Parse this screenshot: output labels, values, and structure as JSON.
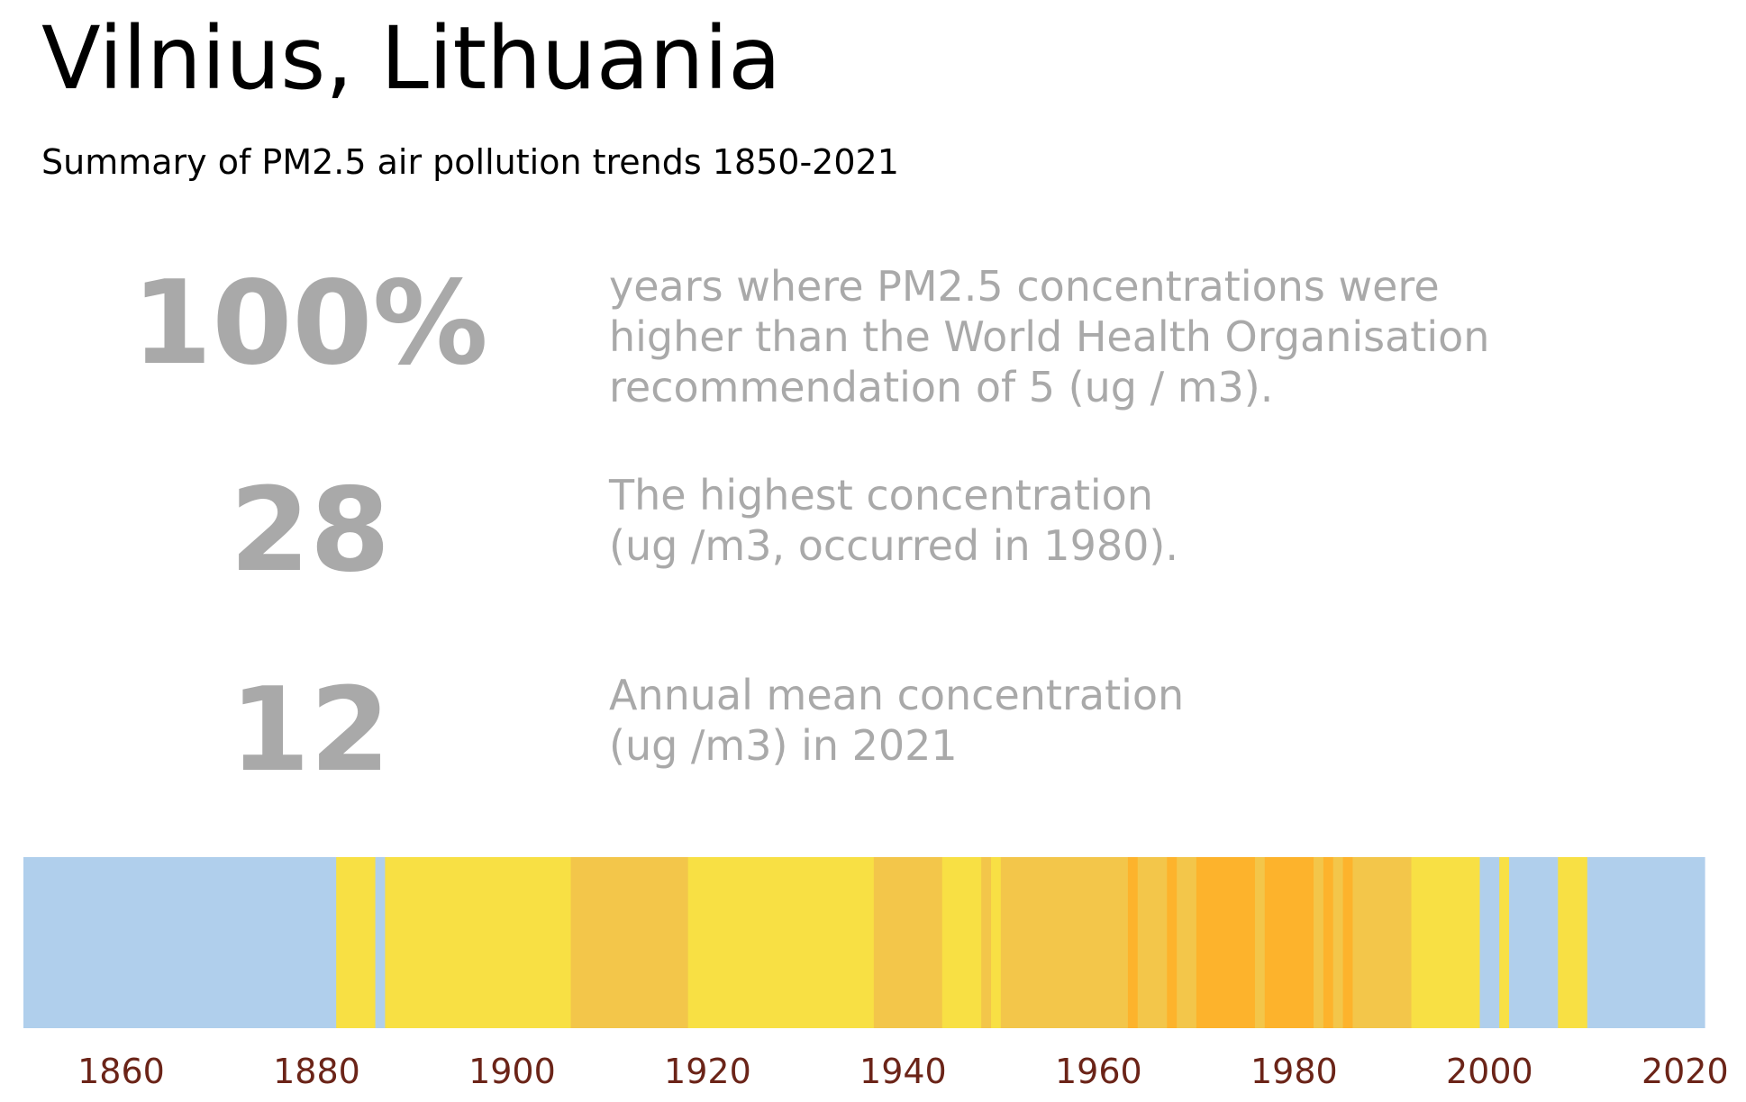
{
  "title": "Vilnius, Lithuania",
  "subtitle": "Summary of PM2.5 air pollution trends 1850-2021",
  "stats": [
    {
      "value": "100%",
      "description": "years where PM2.5 concentrations were\nhigher than the World Health Organisation\nrecommendation of 5 (ug / m3)."
    },
    {
      "value": "28",
      "description": "The highest concentration\n(ug /m3, occurred in 1980)."
    },
    {
      "value": "12",
      "description": "Annual mean concentration\n(ug /m3) in 2021"
    }
  ],
  "colors": {
    "level_1": "#b0cfec",
    "level_2": "#f8e044",
    "level_3": "#f3c64a",
    "level_4": "#fdb32c",
    "tick_label": "#6b2418",
    "stat_text": "#a9a9a9"
  },
  "chart_data": {
    "type": "heatmap",
    "description": "warming-stripe style bar, one stripe per year colored by concentration level",
    "xlim": [
      1850,
      2022
    ],
    "xticks": [
      1860,
      1880,
      1900,
      1920,
      1940,
      1960,
      1980,
      2000,
      2020
    ],
    "segments": [
      {
        "start": 1850,
        "end": 1882,
        "level": 1
      },
      {
        "start": 1882,
        "end": 1886,
        "level": 2
      },
      {
        "start": 1886,
        "end": 1887,
        "level": 1
      },
      {
        "start": 1887,
        "end": 1906,
        "level": 2
      },
      {
        "start": 1906,
        "end": 1918,
        "level": 3
      },
      {
        "start": 1918,
        "end": 1937,
        "level": 2
      },
      {
        "start": 1937,
        "end": 1944,
        "level": 3
      },
      {
        "start": 1944,
        "end": 1948,
        "level": 2
      },
      {
        "start": 1948,
        "end": 1949,
        "level": 3
      },
      {
        "start": 1949,
        "end": 1950,
        "level": 2
      },
      {
        "start": 1950,
        "end": 1963,
        "level": 3
      },
      {
        "start": 1963,
        "end": 1964,
        "level": 4
      },
      {
        "start": 1964,
        "end": 1967,
        "level": 3
      },
      {
        "start": 1967,
        "end": 1968,
        "level": 4
      },
      {
        "start": 1968,
        "end": 1970,
        "level": 3
      },
      {
        "start": 1970,
        "end": 1976,
        "level": 4
      },
      {
        "start": 1976,
        "end": 1977,
        "level": 3
      },
      {
        "start": 1977,
        "end": 1982,
        "level": 4
      },
      {
        "start": 1982,
        "end": 1983,
        "level": 3
      },
      {
        "start": 1983,
        "end": 1984,
        "level": 4
      },
      {
        "start": 1984,
        "end": 1985,
        "level": 3
      },
      {
        "start": 1985,
        "end": 1986,
        "level": 4
      },
      {
        "start": 1986,
        "end": 1992,
        "level": 3
      },
      {
        "start": 1992,
        "end": 1999,
        "level": 2
      },
      {
        "start": 1999,
        "end": 2001,
        "level": 1
      },
      {
        "start": 2001,
        "end": 2002,
        "level": 2
      },
      {
        "start": 2002,
        "end": 2007,
        "level": 1
      },
      {
        "start": 2007,
        "end": 2010,
        "level": 2
      },
      {
        "start": 2010,
        "end": 2022,
        "level": 1
      }
    ]
  }
}
